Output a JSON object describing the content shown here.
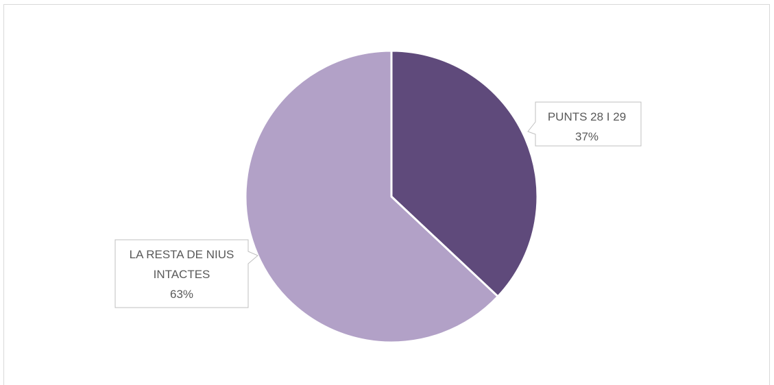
{
  "chart_data": {
    "type": "pie",
    "title": "",
    "slices": [
      {
        "label": "PUNTS 28 I 29",
        "value": 37,
        "percent_label": "37%",
        "color": "#5f4a7b"
      },
      {
        "label_lines": [
          "LA RESTA DE NIUS",
          "INTACTES"
        ],
        "label": "LA RESTA DE NIUS INTACTES",
        "value": 63,
        "percent_label": "63%",
        "color": "#b2a1c7"
      }
    ],
    "legend": "none",
    "data_labels": "callouts"
  }
}
